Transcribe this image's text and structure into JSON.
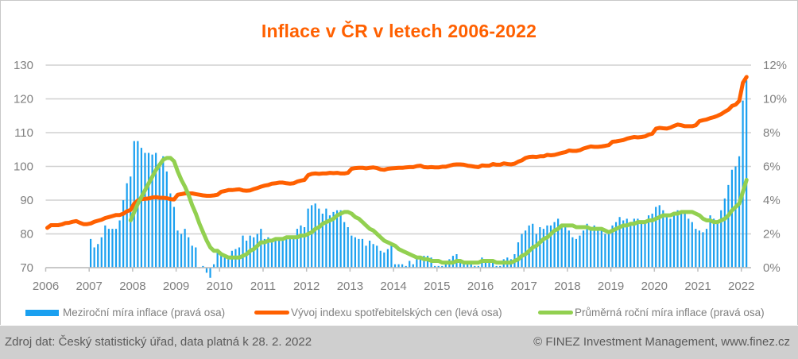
{
  "chart_data": {
    "type": "bar+line",
    "title": "Inflace v ČR v letech 2006-2022",
    "x_ticks": [
      "2006",
      "2007",
      "2008",
      "2009",
      "2010",
      "2011",
      "2012",
      "2013",
      "2014",
      "2015",
      "2016",
      "2017",
      "2018",
      "2019",
      "2020",
      "2021",
      "2022"
    ],
    "left_axis": {
      "label": "Vývoj indexu spotřebitelských cen",
      "ylim": [
        70,
        130
      ],
      "ticks": [
        "70",
        "80",
        "90",
        "100",
        "110",
        "120",
        "130"
      ]
    },
    "right_axis": {
      "label": "Míra inflace",
      "ylim": [
        0,
        12
      ],
      "ticks": [
        "0%",
        "2%",
        "4%",
        "6%",
        "8%",
        "10%",
        "12%"
      ]
    },
    "grid": true,
    "legend_position": "bottom",
    "series": [
      {
        "name": "Meziroční míra inflace (pravá osa)",
        "type": "bar",
        "axis": "right",
        "color": "#1aa0f0",
        "start": "2007-01",
        "unit": "%",
        "values": [
          1.7,
          1.2,
          1.4,
          1.8,
          2.5,
          2.3,
          2.3,
          2.3,
          2.8,
          4.0,
          5.0,
          5.4,
          7.5,
          7.5,
          7.1,
          6.8,
          6.8,
          6.7,
          6.8,
          6.2,
          6.6,
          5.7,
          4.4,
          3.6,
          2.2,
          2.0,
          2.3,
          1.8,
          1.3,
          1.2,
          0.0,
          0.1,
          -0.3,
          -0.6,
          0.2,
          1.0,
          0.7,
          0.7,
          0.7,
          1.0,
          1.1,
          1.2,
          1.9,
          1.6,
          1.9,
          1.8,
          2.0,
          2.3,
          1.7,
          1.8,
          1.7,
          1.6,
          1.8,
          1.8,
          1.7,
          1.8,
          1.7,
          2.3,
          2.5,
          2.4,
          3.5,
          3.7,
          3.8,
          3.5,
          3.2,
          3.5,
          3.1,
          3.3,
          3.4,
          3.4,
          2.7,
          2.4,
          1.9,
          1.8,
          1.7,
          1.7,
          1.3,
          1.6,
          1.4,
          1.3,
          1.0,
          0.9,
          1.1,
          1.4,
          0.2,
          0.2,
          0.2,
          0.1,
          0.4,
          0.2,
          0.6,
          0.6,
          0.7,
          0.7,
          0.6,
          0.1,
          0.1,
          0.1,
          0.2,
          0.5,
          0.7,
          0.8,
          0.5,
          0.3,
          0.4,
          0.2,
          0.1,
          0.1,
          0.6,
          0.3,
          0.3,
          0.5,
          0.1,
          0.1,
          0.5,
          0.6,
          0.5,
          0.8,
          1.5,
          2.0,
          2.2,
          2.5,
          2.6,
          2.0,
          2.4,
          2.3,
          2.5,
          2.5,
          2.7,
          2.9,
          2.6,
          2.4,
          2.2,
          1.8,
          1.7,
          1.9,
          2.2,
          2.6,
          2.3,
          2.5,
          2.3,
          2.2,
          2.0,
          2.0,
          2.5,
          2.7,
          3.0,
          2.8,
          2.9,
          2.7,
          2.9,
          2.9,
          2.7,
          2.7,
          3.1,
          3.2,
          3.6,
          3.7,
          3.4,
          3.2,
          2.9,
          3.3,
          3.4,
          3.3,
          3.2,
          2.9,
          2.7,
          2.3,
          2.2,
          2.1,
          2.3,
          3.1,
          2.9,
          2.8,
          3.4,
          4.1,
          4.9,
          5.8,
          6.0,
          6.6,
          9.9,
          11.1
        ]
      },
      {
        "name": "Vývoj indexu spotřebitelských cen (levá osa)",
        "type": "line",
        "axis": "left",
        "color": "#ff6000",
        "start": "2006-01",
        "unit": "index",
        "values": [
          81.8,
          82.6,
          82.6,
          82.6,
          82.8,
          83.2,
          83.3,
          83.6,
          83.8,
          83.3,
          82.9,
          82.9,
          83.1,
          83.6,
          83.9,
          84.2,
          84.7,
          85.0,
          85.3,
          85.6,
          85.6,
          86.0,
          86.7,
          87.1,
          89.0,
          89.9,
          90.3,
          90.4,
          90.5,
          90.8,
          90.9,
          90.7,
          90.7,
          90.6,
          90.3,
          90.2,
          91.6,
          91.8,
          92.0,
          92.0,
          92.0,
          91.8,
          91.6,
          91.4,
          91.3,
          91.3,
          91.4,
          91.6,
          92.5,
          92.7,
          93.0,
          93.0,
          93.1,
          93.2,
          92.9,
          92.8,
          92.9,
          93.3,
          93.6,
          94.0,
          94.3,
          94.5,
          94.9,
          95.0,
          95.2,
          95.2,
          95.0,
          94.9,
          95.0,
          95.5,
          95.8,
          96.0,
          97.4,
          97.8,
          97.9,
          97.8,
          97.9,
          97.9,
          98.1,
          98.0,
          98.1,
          97.9,
          97.9,
          98.1,
          99.3,
          99.5,
          99.6,
          99.6,
          99.4,
          99.6,
          99.7,
          99.5,
          99.1,
          99.0,
          99.3,
          99.4,
          99.5,
          99.6,
          99.6,
          99.7,
          99.8,
          99.8,
          100.1,
          100.2,
          99.8,
          99.7,
          99.8,
          99.7,
          99.7,
          99.9,
          99.9,
          100.2,
          100.5,
          100.6,
          100.6,
          100.5,
          100.2,
          100.1,
          99.9,
          99.8,
          100.3,
          100.2,
          100.2,
          100.7,
          100.5,
          100.5,
          100.9,
          100.7,
          100.6,
          100.8,
          101.4,
          101.8,
          102.5,
          102.8,
          102.9,
          102.8,
          103.0,
          103.0,
          103.4,
          103.3,
          103.4,
          103.7,
          104.0,
          104.2,
          104.7,
          104.6,
          104.6,
          104.8,
          105.3,
          105.6,
          105.9,
          105.8,
          105.8,
          105.9,
          106.1,
          106.3,
          107.3,
          107.4,
          107.6,
          107.8,
          108.2,
          108.5,
          108.7,
          108.6,
          108.7,
          108.9,
          109.4,
          109.7,
          111.2,
          111.4,
          111.3,
          111.2,
          111.5,
          112.0,
          112.4,
          112.2,
          111.9,
          111.9,
          111.9,
          112.2,
          113.4,
          113.7,
          113.9,
          114.3,
          114.6,
          115.0,
          115.5,
          116.2,
          116.8,
          117.9,
          118.3,
          119.4,
          124.8,
          126.5
        ]
      },
      {
        "name": "Průměrná roční míra inflace (pravá osa)",
        "type": "line",
        "axis": "right",
        "color": "#92d050",
        "start": "2007-12",
        "unit": "%",
        "values": [
          2.8,
          3.3,
          3.8,
          4.2,
          4.6,
          5.0,
          5.4,
          5.8,
          6.1,
          6.4,
          6.5,
          6.5,
          6.3,
          5.7,
          5.2,
          4.8,
          4.3,
          3.7,
          3.2,
          2.6,
          2.1,
          1.6,
          1.2,
          1.0,
          1.0,
          0.8,
          0.7,
          0.6,
          0.6,
          0.6,
          0.6,
          0.7,
          0.8,
          1.0,
          1.1,
          1.3,
          1.5,
          1.5,
          1.6,
          1.6,
          1.7,
          1.7,
          1.7,
          1.8,
          1.8,
          1.8,
          1.8,
          1.9,
          1.9,
          2.0,
          2.1,
          2.3,
          2.4,
          2.6,
          2.7,
          2.8,
          2.9,
          3.1,
          3.2,
          3.3,
          3.3,
          3.2,
          3.0,
          2.9,
          2.7,
          2.5,
          2.3,
          2.2,
          2.0,
          1.8,
          1.6,
          1.5,
          1.4,
          1.3,
          1.1,
          1.0,
          0.9,
          0.8,
          0.7,
          0.6,
          0.6,
          0.5,
          0.5,
          0.4,
          0.4,
          0.4,
          0.3,
          0.3,
          0.3,
          0.3,
          0.4,
          0.4,
          0.3,
          0.3,
          0.3,
          0.3,
          0.3,
          0.4,
          0.4,
          0.4,
          0.4,
          0.3,
          0.3,
          0.3,
          0.3,
          0.3,
          0.4,
          0.5,
          0.7,
          0.8,
          1.0,
          1.2,
          1.3,
          1.5,
          1.7,
          1.8,
          2.0,
          2.2,
          2.3,
          2.5,
          2.5,
          2.5,
          2.5,
          2.4,
          2.4,
          2.4,
          2.4,
          2.3,
          2.3,
          2.3,
          2.3,
          2.2,
          2.1,
          2.2,
          2.3,
          2.4,
          2.5,
          2.5,
          2.6,
          2.6,
          2.7,
          2.7,
          2.7,
          2.8,
          2.8,
          2.9,
          3.0,
          3.1,
          3.1,
          3.1,
          3.2,
          3.2,
          3.3,
          3.3,
          3.3,
          3.3,
          3.2,
          3.1,
          2.9,
          2.8,
          2.8,
          2.7,
          2.7,
          2.8,
          2.9,
          3.1,
          3.4,
          3.6,
          3.8,
          4.5,
          5.2
        ]
      }
    ]
  },
  "legend": {
    "bars_label": "Meziroční míra inflace (pravá osa)",
    "cpi_label": "Vývoj indexu spotřebitelských cen (levá osa)",
    "avg_label": "Průměrná roční míra inflace (pravá osa)"
  },
  "footer": {
    "source": "Zdroj dat: Český statistický úřad, data platná k 28. 2. 2022",
    "copyright": "© FINEZ Investment Management, www.finez.cz"
  }
}
